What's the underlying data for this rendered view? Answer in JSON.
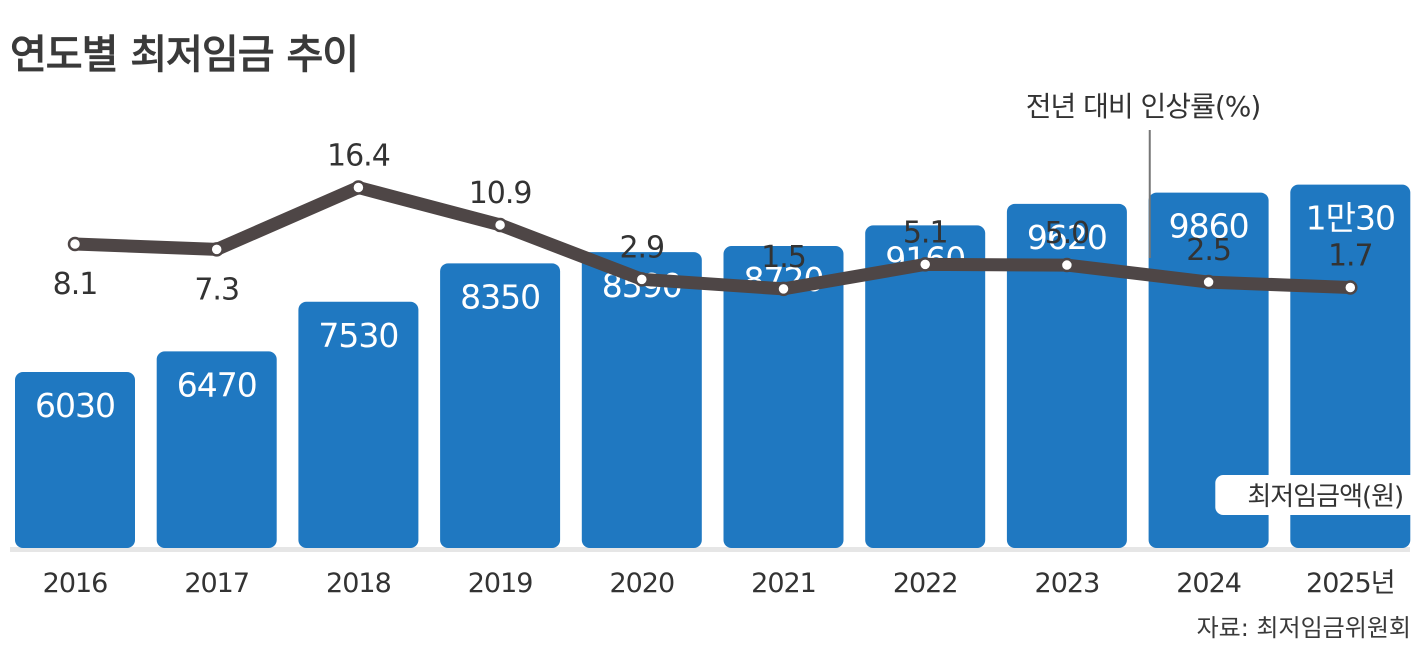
{
  "chart_data": {
    "type": "bar",
    "title": "연도별 최저임금 추이",
    "categories": [
      "2016",
      "2017",
      "2018",
      "2019",
      "2020",
      "2021",
      "2022",
      "2023",
      "2024",
      "2025년"
    ],
    "bar_labels": [
      "6030",
      "6470",
      "7530",
      "8350",
      "8590",
      "8720",
      "9160",
      "9620",
      "9860",
      "1만30"
    ],
    "series": [
      {
        "name": "최저임금액(원)",
        "type": "bar",
        "values": [
          6030,
          6470,
          7530,
          8350,
          8590,
          8720,
          9160,
          9620,
          9860,
          10030
        ],
        "color": "#1f78c1"
      },
      {
        "name": "전년 대비 인상률(%)",
        "type": "line",
        "values": [
          8.1,
          7.3,
          16.4,
          10.9,
          2.9,
          1.5,
          5.1,
          5.0,
          2.5,
          1.7
        ],
        "labels": [
          "8.1",
          "7.3",
          "16.4",
          "10.9",
          "2.9",
          "1.5",
          "5.1",
          "5.0",
          "2.5",
          "1.7"
        ],
        "color": "#4e4646"
      }
    ],
    "source": "자료: 최저임금위원회",
    "legend": "inline"
  }
}
